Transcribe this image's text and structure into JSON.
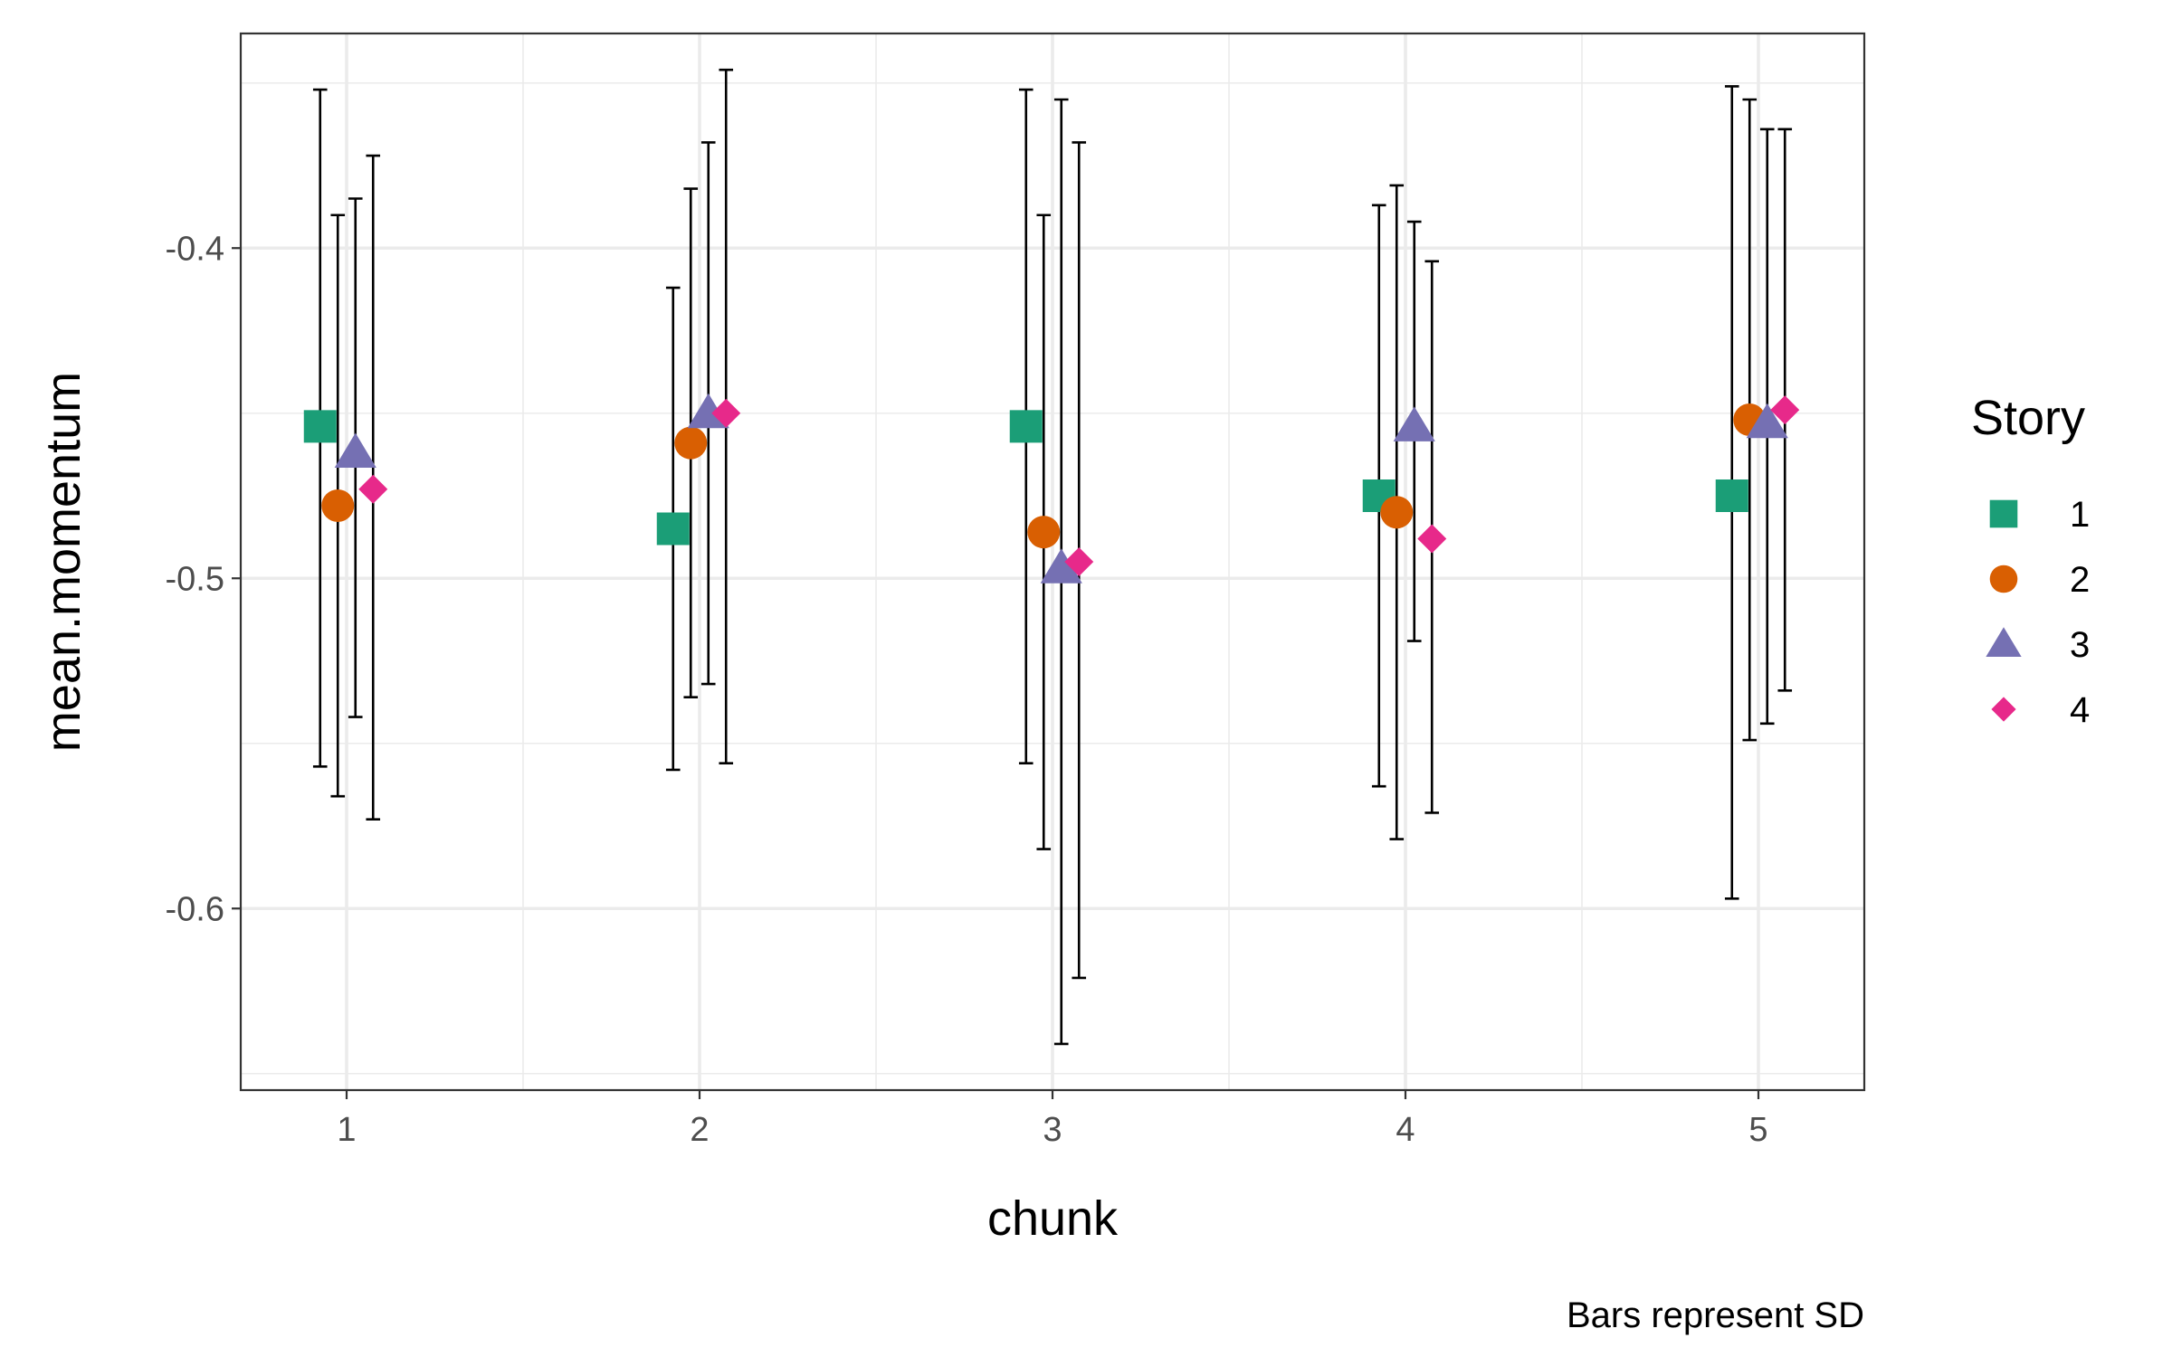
{
  "chart_data": {
    "type": "scatter",
    "xlabel": "chunk",
    "ylabel": "mean.momentum",
    "caption": "Bars represent SD",
    "x_categories": [
      "1",
      "2",
      "3",
      "4",
      "5"
    ],
    "xlim": [
      0.7,
      5.3
    ],
    "ylim": [
      -0.655,
      -0.335
    ],
    "y_ticks": [
      -0.4,
      -0.5,
      -0.6
    ],
    "y_tick_labels": [
      "-0.4",
      "-0.5",
      "-0.6"
    ],
    "grid": true,
    "error_bars": "SD",
    "legend": {
      "title": "Story",
      "position": "right",
      "entries": [
        "1",
        "2",
        "3",
        "4"
      ]
    },
    "series": [
      {
        "name": "1",
        "shape": "square",
        "color": "#1b9e77",
        "points": [
          {
            "x": 1,
            "mean": -0.454,
            "lower": -0.557,
            "upper": -0.352
          },
          {
            "x": 2,
            "mean": -0.485,
            "lower": -0.558,
            "upper": -0.412
          },
          {
            "x": 3,
            "mean": -0.454,
            "lower": -0.556,
            "upper": -0.352
          },
          {
            "x": 4,
            "mean": -0.475,
            "lower": -0.563,
            "upper": -0.387
          },
          {
            "x": 5,
            "mean": -0.475,
            "lower": -0.597,
            "upper": -0.351
          }
        ]
      },
      {
        "name": "2",
        "shape": "circle",
        "color": "#d95f02",
        "points": [
          {
            "x": 1,
            "mean": -0.478,
            "lower": -0.566,
            "upper": -0.39
          },
          {
            "x": 2,
            "mean": -0.459,
            "lower": -0.536,
            "upper": -0.382
          },
          {
            "x": 3,
            "mean": -0.486,
            "lower": -0.582,
            "upper": -0.39
          },
          {
            "x": 4,
            "mean": -0.48,
            "lower": -0.579,
            "upper": -0.381
          },
          {
            "x": 5,
            "mean": -0.452,
            "lower": -0.549,
            "upper": -0.355
          }
        ]
      },
      {
        "name": "3",
        "shape": "triangle",
        "color": "#7570b3",
        "points": [
          {
            "x": 1,
            "mean": -0.462,
            "lower": -0.542,
            "upper": -0.385
          },
          {
            "x": 2,
            "mean": -0.45,
            "lower": -0.532,
            "upper": -0.368
          },
          {
            "x": 3,
            "mean": -0.497,
            "lower": -0.641,
            "upper": -0.355
          },
          {
            "x": 4,
            "mean": -0.454,
            "lower": -0.519,
            "upper": -0.392
          },
          {
            "x": 5,
            "mean": -0.453,
            "lower": -0.544,
            "upper": -0.364
          }
        ]
      },
      {
        "name": "4",
        "shape": "diamond",
        "color": "#e7298a",
        "points": [
          {
            "x": 1,
            "mean": -0.473,
            "lower": -0.573,
            "upper": -0.372
          },
          {
            "x": 2,
            "mean": -0.45,
            "lower": -0.556,
            "upper": -0.346
          },
          {
            "x": 3,
            "mean": -0.495,
            "lower": -0.621,
            "upper": -0.368
          },
          {
            "x": 4,
            "mean": -0.488,
            "lower": -0.571,
            "upper": -0.404
          },
          {
            "x": 5,
            "mean": -0.449,
            "lower": -0.534,
            "upper": -0.364
          }
        ]
      }
    ]
  }
}
